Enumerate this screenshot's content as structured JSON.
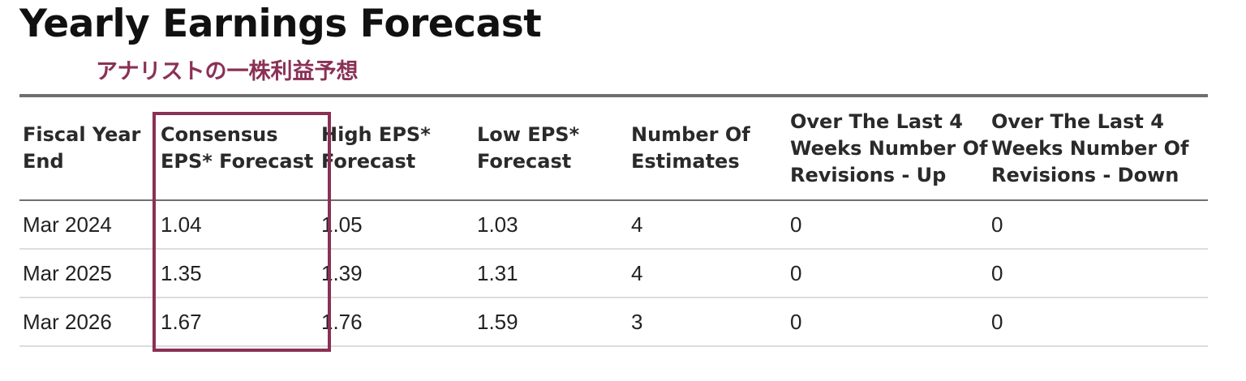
{
  "page": {
    "title": "Yearly Earnings Forecast",
    "annotation": "アナリストの一株利益予想",
    "highlight_color": "#8a3155"
  },
  "table": {
    "headers": [
      "Fiscal Year End",
      "Consensus EPS* Forecast",
      "High EPS* Forecast",
      "Low EPS* Forecast",
      "Number Of Estimates",
      "Over The Last 4 Weeks Number Of Revisions - Up",
      "Over The Last 4 Weeks Number Of Revisions - Down"
    ],
    "highlighted_column": "Consensus EPS* Forecast",
    "rows": [
      [
        "Mar 2024",
        "1.04",
        "1.05",
        "1.03",
        "4",
        "0",
        "0"
      ],
      [
        "Mar 2025",
        "1.35",
        "1.39",
        "1.31",
        "4",
        "0",
        "0"
      ],
      [
        "Mar 2026",
        "1.67",
        "1.76",
        "1.59",
        "3",
        "0",
        "0"
      ]
    ]
  }
}
